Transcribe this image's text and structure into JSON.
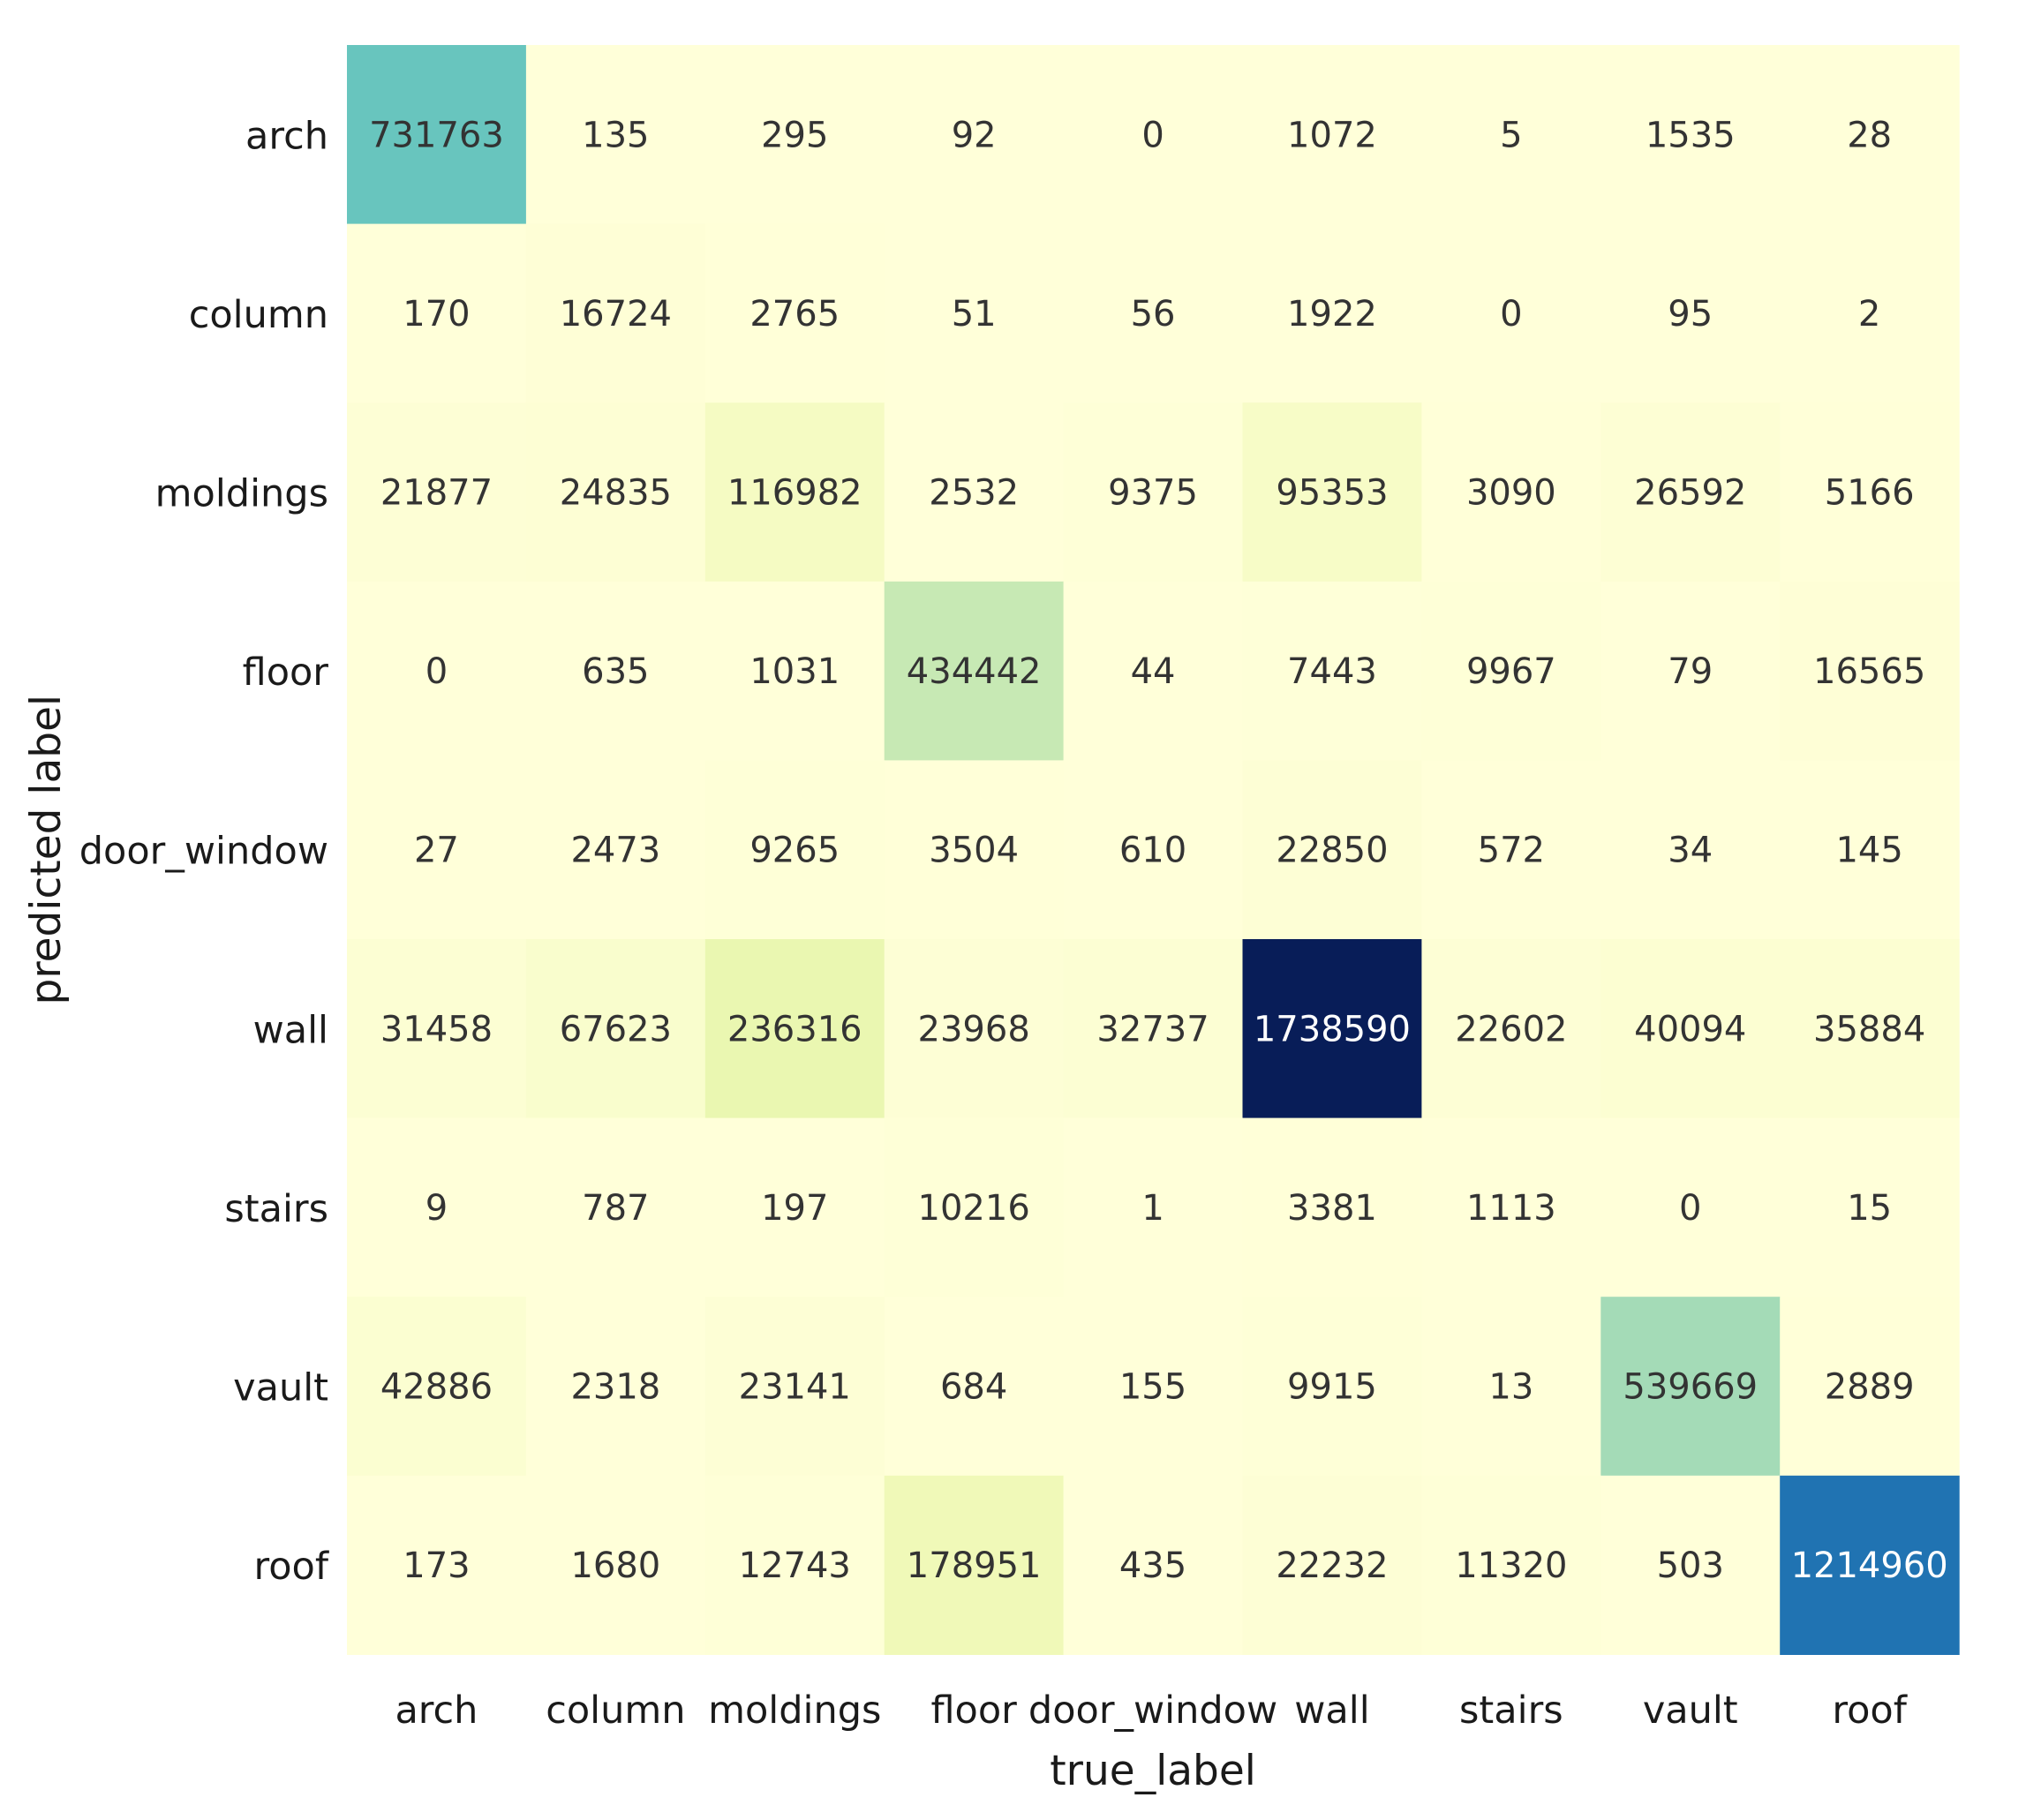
{
  "chart_data": {
    "type": "heatmap",
    "title": "",
    "xlabel": "true_label",
    "ylabel": "predicted label",
    "x_categories": [
      "arch",
      "column",
      "moldings",
      "floor",
      "door_window",
      "wall",
      "stairs",
      "vault",
      "roof"
    ],
    "y_categories": [
      "arch",
      "column",
      "moldings",
      "floor",
      "door_window",
      "wall",
      "stairs",
      "vault",
      "roof"
    ],
    "values": [
      [
        731763,
        135,
        295,
        92,
        0,
        1072,
        5,
        1535,
        28
      ],
      [
        170,
        16724,
        2765,
        51,
        56,
        1922,
        0,
        95,
        2
      ],
      [
        21877,
        24835,
        116982,
        2532,
        9375,
        95353,
        3090,
        26592,
        5166
      ],
      [
        0,
        635,
        1031,
        434442,
        44,
        7443,
        9967,
        79,
        16565
      ],
      [
        27,
        2473,
        9265,
        3504,
        610,
        22850,
        572,
        34,
        145
      ],
      [
        31458,
        67623,
        236316,
        23968,
        32737,
        1738590,
        22602,
        40094,
        35884
      ],
      [
        9,
        787,
        197,
        10216,
        1,
        3381,
        1113,
        0,
        15
      ],
      [
        42886,
        2318,
        23141,
        684,
        155,
        9915,
        13,
        539669,
        2889
      ],
      [
        173,
        1680,
        12743,
        178951,
        435,
        22232,
        11320,
        503,
        1214960
      ]
    ],
    "colormap": "YlGnBu",
    "colormap_stops": [
      "#ffffd9",
      "#edf8b1",
      "#c7e9b4",
      "#7fcdbb",
      "#41b6c4",
      "#1d91c0",
      "#225ea8",
      "#253494",
      "#081d58"
    ],
    "value_range": [
      0,
      1738590
    ],
    "colorbar": false,
    "grid": false
  }
}
